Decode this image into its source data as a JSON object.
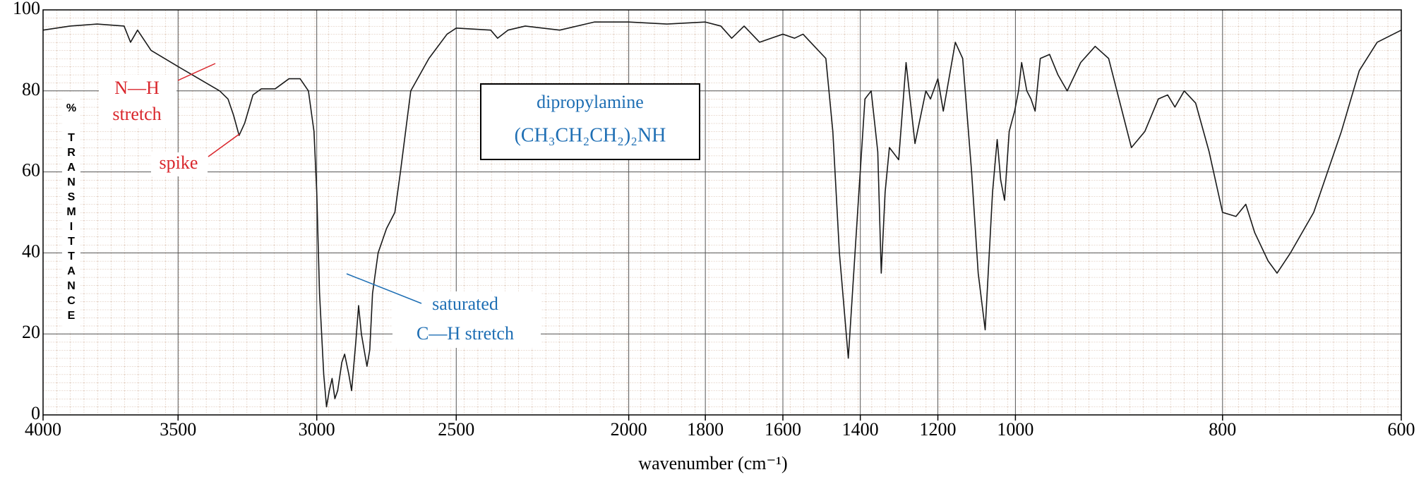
{
  "chart_data": {
    "type": "line",
    "title": "dipropylamine",
    "subtitle": "(CH₃CH₂CH₂)₂NH",
    "x_label": "wavenumber (cm⁻¹)",
    "y_label": "% TRANSMITTANCE",
    "annotations": {
      "nh_stretch_1": "N—H",
      "nh_stretch_2": "stretch",
      "spike": "spike",
      "ch_stretch_1": "saturated",
      "ch_stretch_2": "C—H stretch"
    },
    "x": [
      4000,
      3900,
      3800,
      3700,
      3676,
      3650,
      3600,
      3500,
      3450,
      3400,
      3350,
      3320,
      3300,
      3280,
      3260,
      3230,
      3200,
      3150,
      3100,
      3060,
      3030,
      3010,
      3000,
      2990,
      2975,
      2965,
      2955,
      2945,
      2935,
      2925,
      2910,
      2900,
      2885,
      2875,
      2860,
      2850,
      2840,
      2820,
      2810,
      2800,
      2780,
      2750,
      2720,
      2700,
      2663,
      2598,
      2533,
      2500,
      2400,
      2380,
      2350,
      2300,
      2200,
      2100,
      2000,
      1900,
      1800,
      1760,
      1732,
      1700,
      1660,
      1630,
      1600,
      1570,
      1548,
      1489,
      1471,
      1454,
      1431,
      1407,
      1388,
      1372,
      1355,
      1346,
      1336,
      1325,
      1301,
      1282,
      1259,
      1231,
      1219,
      1200,
      1186,
      1155,
      1136,
      1113,
      1096,
      1078,
      1059,
      1047,
      1038,
      1028,
      1016,
      1002,
      997,
      994,
      989,
      985,
      981,
      976,
      967,
      959,
      950,
      937,
      923,
      910,
      897,
      888,
      875,
      862,
      853,
      846,
      837,
      826,
      813,
      800,
      785,
      774,
      764,
      749,
      739,
      724,
      698,
      667,
      647,
      627,
      600
    ],
    "values": [
      95,
      96,
      96.5,
      96,
      92,
      95,
      90,
      86,
      84,
      82,
      80,
      78,
      74,
      69,
      72,
      79,
      80.5,
      80.5,
      83,
      83,
      80,
      70,
      55,
      30,
      10,
      2,
      6,
      9,
      4,
      6,
      13,
      15,
      10,
      6,
      18,
      27,
      20,
      12,
      16,
      30,
      40,
      46,
      50,
      60,
      80,
      88,
      94,
      95.5,
      95,
      93,
      95,
      96,
      95,
      97,
      97,
      96.5,
      97,
      96,
      93,
      96,
      92,
      93,
      94,
      93,
      94,
      88,
      70,
      40,
      14,
      50,
      78,
      80,
      65,
      35,
      55,
      66,
      63,
      87,
      67,
      80,
      78,
      83,
      75,
      92,
      88,
      60,
      35,
      21,
      55,
      68,
      58,
      53,
      70,
      75,
      80,
      87,
      80,
      78,
      75,
      88,
      89,
      84,
      80,
      87,
      91,
      88,
      75,
      66,
      70,
      78,
      79,
      76,
      80,
      77,
      65,
      50,
      49,
      52,
      45,
      38,
      35,
      40,
      50,
      70,
      85,
      92,
      95
    ],
    "color": "#1a1a1a",
    "xlim": [
      4000,
      600
    ],
    "ylim": [
      0,
      100
    ],
    "xticks": [
      4000,
      3500,
      3000,
      2500,
      2000,
      1800,
      1600,
      1400,
      1200,
      1000,
      800,
      600
    ],
    "yticks": [
      0,
      20,
      40,
      60,
      80,
      100
    ],
    "grid": true
  }
}
